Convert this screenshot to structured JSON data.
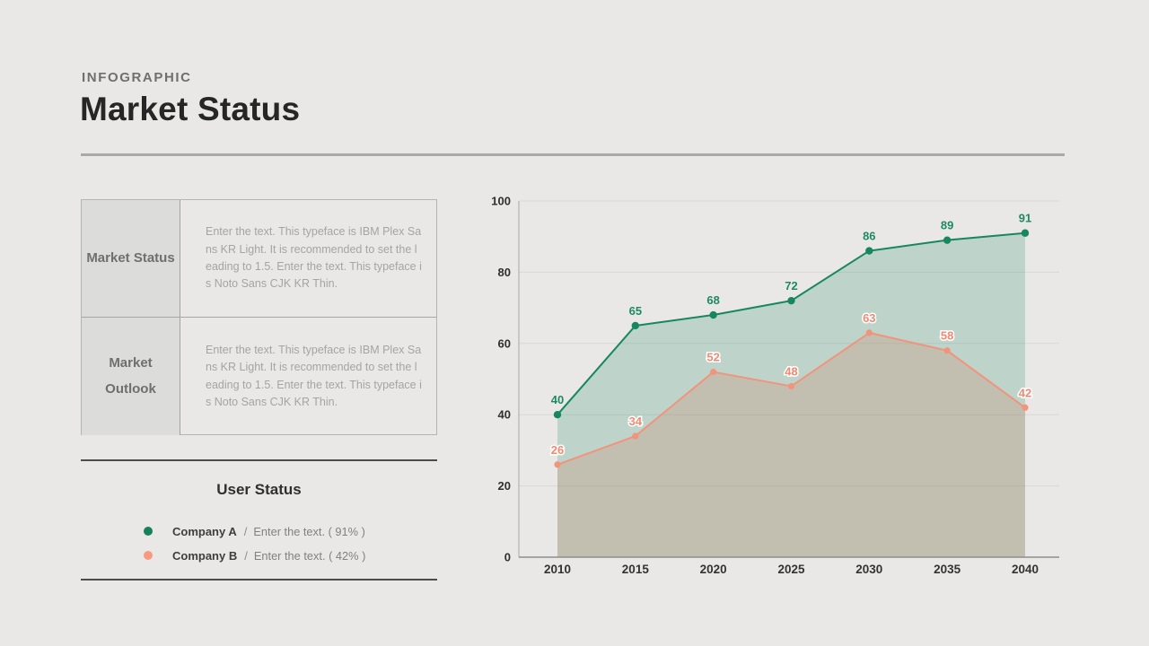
{
  "page": {
    "background": "#e9e8e6"
  },
  "header": {
    "eyebrow": "INFOGRAPHIC",
    "title": "Market Status"
  },
  "info_table": {
    "rows": [
      {
        "label": "Market Status",
        "body": "Enter the text. This typeface is IBM Plex Sans KR Light. It is recommended to set the leading to 1.5. Enter the text. This typeface is Noto Sans CJK KR Thin."
      },
      {
        "label": "Market Outlook",
        "body": "Enter the text. This typeface is IBM Plex Sans KR Light. It is recommended to set the leading to 1.5. Enter the text. This typeface is Noto Sans CJK KR Thin."
      }
    ]
  },
  "legend": {
    "title": "User Status",
    "items": [
      {
        "name": "Company A",
        "separator": "/",
        "description": "Enter the text. ( 91% )",
        "dot_color": "#17805f"
      },
      {
        "name": "Company B",
        "separator": "/",
        "description": "Enter the text. ( 42% )",
        "dot_color": "#f79a7e"
      }
    ]
  },
  "chart_data": {
    "type": "area",
    "title": "",
    "xlabel": "",
    "ylabel": "",
    "x": [
      "2010",
      "2015",
      "2020",
      "2025",
      "2030",
      "2035",
      "2040"
    ],
    "series": [
      {
        "name": "Company A",
        "values": [
          40,
          65,
          68,
          72,
          86,
          89,
          91
        ],
        "color": "#17875f",
        "fill": "rgba(18,135,95,0.20)",
        "label_color": "#1e8a63",
        "label_halo": false,
        "point_radius": 4.2
      },
      {
        "name": "Company B",
        "values": [
          26,
          34,
          52,
          48,
          63,
          58,
          42
        ],
        "color": "#f2937b",
        "fill": "rgba(205,140,115,0.30)",
        "label_color": "#f08a72",
        "label_halo": true,
        "point_radius": 3.6
      }
    ],
    "ylim": [
      0,
      100
    ],
    "yticks": [
      0,
      20,
      40,
      60,
      80,
      100
    ],
    "grid": true,
    "point_labels": true,
    "legend_position": "left-panel",
    "colors": {
      "grid": "#d8d8d6",
      "y_axis_line": "#a8a8a6",
      "x_axis_line": "#8e8e8c",
      "tick_label": "#2f2f2d",
      "x_label": "#333331"
    }
  }
}
